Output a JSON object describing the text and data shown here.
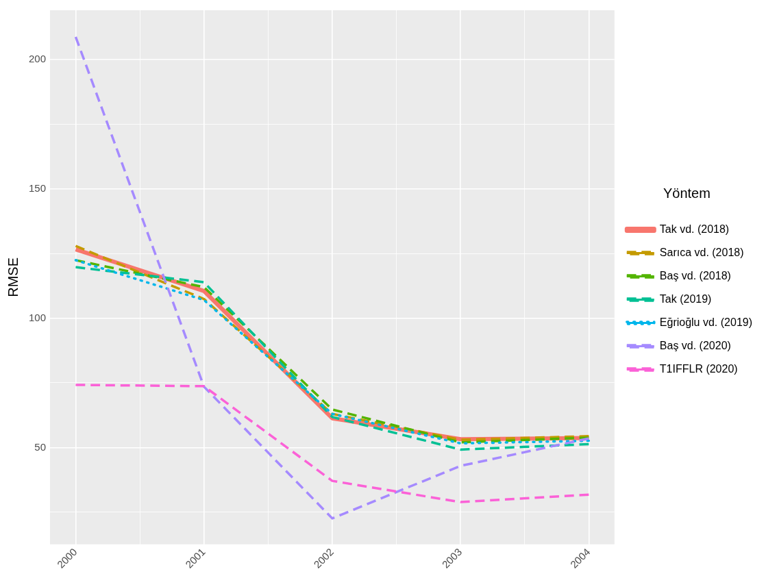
{
  "chart_data": {
    "type": "line",
    "ylabel": "RMSE",
    "legend_title": "Yöntem",
    "legend": "right",
    "grid": true,
    "marker": "none",
    "x": [
      2000,
      2001,
      2002,
      2003,
      2004
    ],
    "xlim": [
      1999.8,
      2004.2
    ],
    "xticks": [
      2000,
      {
        "value": 2000.5,
        "label": null
      },
      2001,
      {
        "value": 2001.5,
        "label": null
      },
      2002,
      {
        "value": 2002.5,
        "label": null
      },
      2003,
      {
        "value": 2003.5,
        "label": null
      },
      2004
    ],
    "ylim": [
      12.6,
      219
    ],
    "yticks": [
      {
        "value": 25,
        "label": null
      },
      50,
      {
        "value": 75,
        "label": null
      },
      100,
      {
        "value": 125,
        "label": null
      },
      150,
      {
        "value": 175,
        "label": null
      },
      200
    ],
    "series": [
      {
        "name": "Tak vd. (2018)",
        "color": "#f8766d",
        "line_style": "solid",
        "values": [
          126.6,
          110.5,
          61.3,
          53.2,
          53.7
        ]
      },
      {
        "name": "Sarıca vd. (2018)",
        "color": "#c49a00",
        "line_style": "dashed",
        "values": [
          127.9,
          107.4,
          63,
          53,
          54.4
        ]
      },
      {
        "name": "Baş vd. (2018)",
        "color": "#53b400",
        "line_style": "dashed",
        "values": [
          122.4,
          112,
          64.7,
          52,
          53.8
        ]
      },
      {
        "name": "Tak (2019)",
        "color": "#00c094",
        "line_style": "dashed",
        "values": [
          119.7,
          113.9,
          61.8,
          49.2,
          51.3
        ]
      },
      {
        "name": "Eğrioğlu vd. (2019)",
        "color": "#00b6eb",
        "line_style": "dotted",
        "values": [
          122.4,
          107,
          63,
          51.6,
          52.6
        ]
      },
      {
        "name": "Baş vd. (2020)",
        "color": "#a58aff",
        "line_style": "dashed",
        "values": [
          208.7,
          73.5,
          22.6,
          42.9,
          53.5
        ]
      },
      {
        "name": "T1IFFLR (2020)",
        "color": "#fb61d7",
        "line_style": "dashed",
        "values": [
          74.2,
          73.7,
          37.1,
          28.9,
          31.8
        ]
      }
    ]
  }
}
